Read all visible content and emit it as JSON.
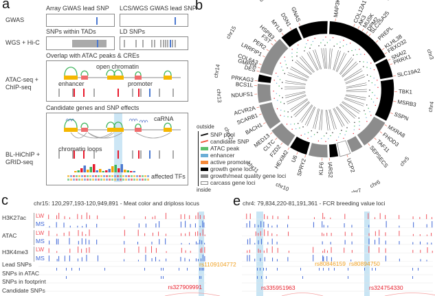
{
  "panel_a": {
    "letter": "a",
    "rows": [
      {
        "label": "GWAS"
      },
      {
        "label": "WGS + Hi-C"
      },
      {
        "label": "ATAC-seq +\nChIP-seq"
      },
      {
        "label": "BL-HiChIP +\nGRID-seq"
      }
    ],
    "box_titles": {
      "array_gwas": "Array GWAS lead SNP",
      "lcs_gwas": "LCS/WGS GWAS lead SNP",
      "tads": "SNPs within TADs",
      "ld": "LD SNPs",
      "overlap": "Overlap with ATAC peaks & CREs",
      "candidate": "Candidate genes and SNP effects"
    },
    "annotations": {
      "open_chromatin": "open chromatin",
      "enhancer": "enhancer",
      "promoter": "promoter",
      "carna": "caRNA",
      "chromatin_loops": "chromatin loops",
      "affected_tfs": "affected TFs"
    },
    "colors": {
      "lead_snp": "#4a78d0",
      "candidate_snp": "#e8192c",
      "snp": "#aaaaaa",
      "enhancer": "#f5b700",
      "promoter": "#f06b6b",
      "atac_peak": "#3cb45a",
      "tad": "#aaaaaa",
      "highlight": "#bfe0f2"
    }
  },
  "panel_b": {
    "letter": "b",
    "legend": {
      "outside": "outside",
      "inside": "inside",
      "items": [
        {
          "label": "SNP pool",
          "color": "#111111",
          "type": "track"
        },
        {
          "label": "candidate SNP",
          "color": "#f05a40",
          "type": "track"
        },
        {
          "label": "ATAC peak",
          "color": "#5cbf6a",
          "type": "box"
        },
        {
          "label": "enhancer",
          "color": "#6baed6",
          "type": "box"
        },
        {
          "label": "active promoter",
          "color": "#f58a3a",
          "type": "box"
        },
        {
          "label": "growth gene loci",
          "color": "#000000",
          "type": "box"
        },
        {
          "label": "growth/meat quality gene loci",
          "color": "#8c8c8c",
          "type": "box"
        },
        {
          "label": "carcass gene loci",
          "color": "#ffffff",
          "type": "box"
        }
      ]
    },
    "chromosomes": [
      {
        "name": "chr1",
        "type": "growth"
      },
      {
        "name": "chr3",
        "type": "growth"
      },
      {
        "name": "chr4",
        "type": "growth"
      },
      {
        "name": "chr5",
        "type": "meat"
      },
      {
        "name": "chr6",
        "type": "meat"
      },
      {
        "name": "chr7",
        "type": "carcass"
      },
      {
        "name": "chr8",
        "type": "growth"
      },
      {
        "name": "chr9",
        "type": "meat"
      },
      {
        "name": "chr10",
        "type": "growth"
      },
      {
        "name": "chr11",
        "type": "meat"
      },
      {
        "name": "chr12",
        "type": "meat"
      },
      {
        "name": "chr13",
        "type": "meat"
      },
      {
        "name": "chr14",
        "type": "growth"
      },
      {
        "name": "chr15",
        "type": "meat"
      },
      {
        "name": "chr16",
        "type": "growth"
      },
      {
        "name": "chr17",
        "type": "growth"
      }
    ],
    "genes": [
      "MAP3K5",
      "COL12A1",
      "AK3",
      "MUSK",
      "DPM2",
      "SLC25A25",
      "PREPL",
      "KLHL38",
      "FBXO32",
      "SNAI2",
      "PRRX1",
      "SLC19A2",
      "TBK1",
      "MSRB3",
      "SSPN",
      "MXRA8",
      "FHOD3",
      "TAF11",
      "SEPSECS",
      "UCP2",
      "IARS2",
      "KLF6",
      "SPRY2",
      "U6",
      "HEXIM2",
      "FZD2",
      "CLTC",
      "MED13",
      "BACH1",
      "SCARB1",
      "ACVR2A",
      "NDUFS1",
      "BCS1L",
      "PRKAG3",
      "DES",
      "GMPPA",
      "COL6A3",
      "LRRFIP1",
      "PER2",
      "FST",
      "HSPB3",
      "MYL9",
      "DSN1",
      "GNAS"
    ]
  },
  "panel_c": {
    "letter": "c",
    "title": "chr15: 120,297,193-120,949,891 - Meat color and driploss locus",
    "lead_snp": "rs1109104772",
    "candidate_snp": "rs327909991"
  },
  "panel_e": {
    "letter": "e",
    "title": "chr4: 79,834,220-81,191,361 - FCR breeding value loci",
    "lead_snps": [
      "rs80846159",
      "rs80894750"
    ],
    "candidate_snps": [
      "rs335951963",
      "rs324754330"
    ]
  },
  "tracks": {
    "marks": [
      "H3K27ac",
      "ATAC",
      "H3K4me3"
    ],
    "groups": [
      "LW",
      "MS"
    ],
    "snp_rows": [
      "Lead SNPs",
      "SNPs in ATAC",
      "SNPs in footprint",
      "Candidate SNPs"
    ],
    "colors": {
      "LW": "#f0505a",
      "MS": "#3a63d6",
      "lead": "#f0a020",
      "candidate": "#e8202c",
      "highlight": "#bfe0f2"
    }
  }
}
